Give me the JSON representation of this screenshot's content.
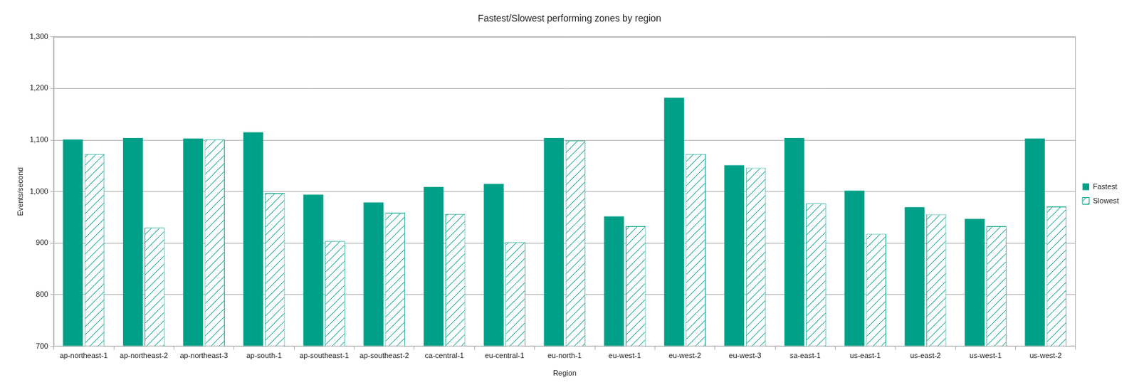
{
  "chart_data": {
    "type": "bar",
    "title": "Fastest/Slowest performing zones by region",
    "x_label": "Region",
    "y_label": "Events/second",
    "categories": [
      "ap-northeast-1",
      "ap-northeast-2",
      "ap-northeast-3",
      "ap-south-1",
      "ap-southeast-1",
      "ap-southeast-2",
      "ca-central-1",
      "eu-central-1",
      "eu-north-1",
      "eu-west-1",
      "eu-west-2",
      "eu-west-3",
      "sa-east-1",
      "us-east-1",
      "us-east-2",
      "us-west-1",
      "us-west-2"
    ],
    "series": [
      {
        "name": "Fastest",
        "color": "#00a088",
        "values": [
          1101,
          1104,
          1103,
          1115,
          994,
          979,
          1009,
          1015,
          1104,
          952,
          1182,
          1051,
          1104,
          1002,
          970,
          947,
          1103
        ]
      },
      {
        "name": "Slowest",
        "color": "#00a088",
        "values": [
          1073,
          930,
          1101,
          997,
          904,
          959,
          957,
          902,
          1099,
          933,
          1073,
          1046,
          977,
          918,
          956,
          933,
          971
        ]
      }
    ],
    "ylim": [
      700,
      1300
    ],
    "yticks": [
      700,
      800,
      900,
      1000,
      1100,
      1200,
      1300
    ],
    "grid": true,
    "legend": "right"
  }
}
